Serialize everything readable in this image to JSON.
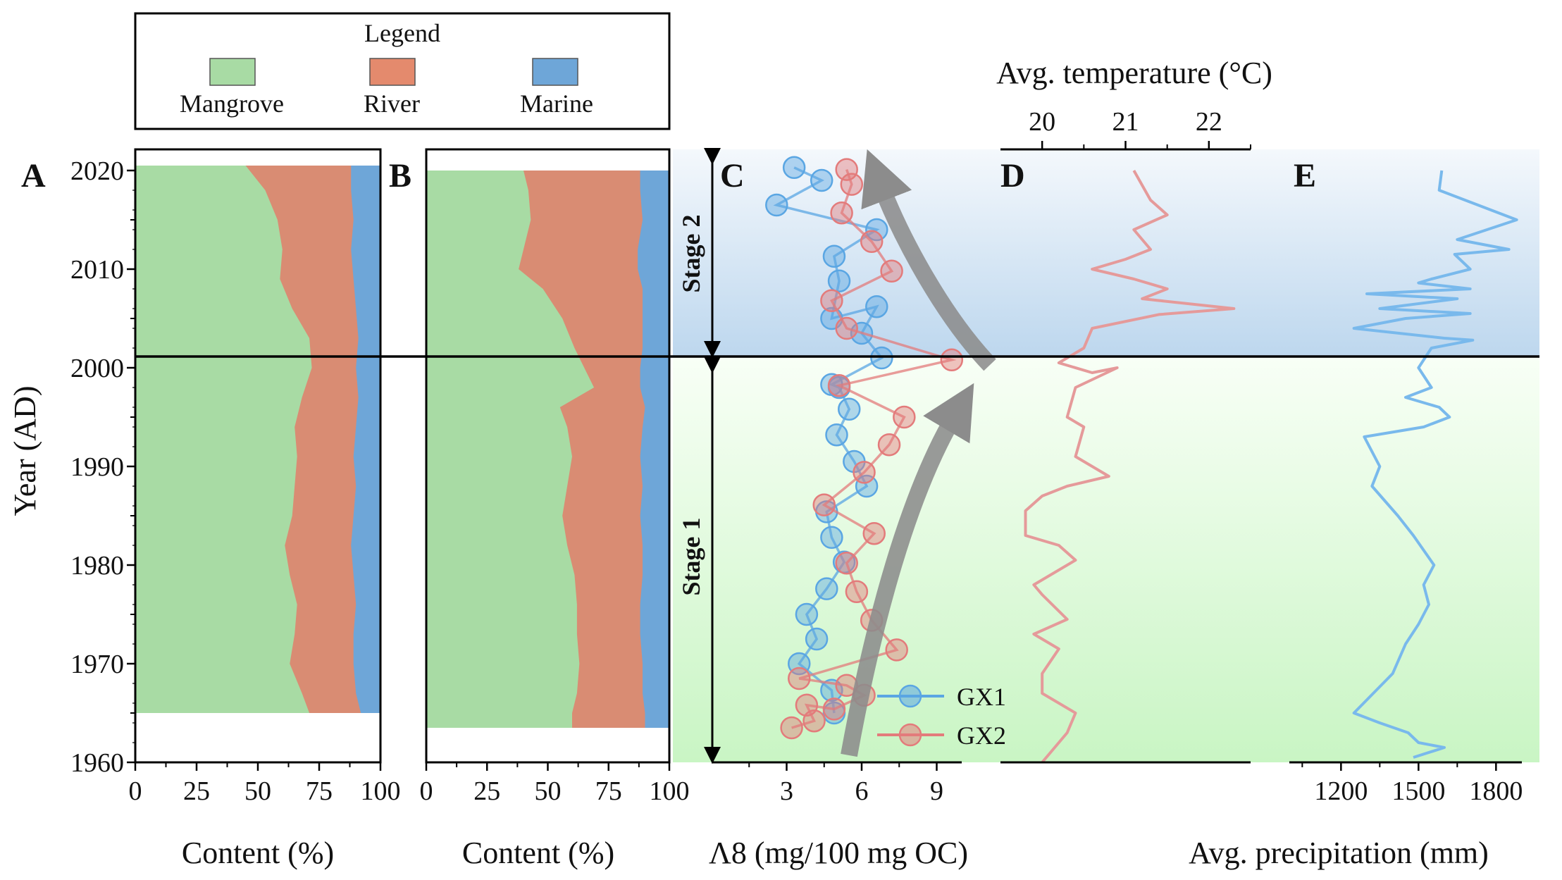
{
  "legend": {
    "title": "Legend",
    "items": [
      {
        "label": "Mangrove",
        "color": "#a8dba4"
      },
      {
        "label": "River",
        "color": "#e48a6d"
      },
      {
        "label": "Marine",
        "color": "#6ea6d8"
      }
    ]
  },
  "colors": {
    "mangrove": "#a8dba4",
    "river": "#d98c73",
    "marine": "#6ea6d8",
    "gx1": "#5aa6e3",
    "gx2": "#e37b7b",
    "temp_line": "#e59a9a",
    "precip_line": "#79b9ec",
    "arrow": "#8c8c8c"
  },
  "stage_labels": {
    "stage2": "Stage 2",
    "stage1": "Stage 1"
  },
  "chart_data": [
    {
      "panel": "A",
      "type": "area",
      "ylabel": "Year (AD)",
      "xlabel": "Content (%)",
      "xlim": [
        0,
        100
      ],
      "ylim": [
        1960,
        2022
      ],
      "y_ticks": [
        1960,
        1970,
        1980,
        1990,
        2000,
        2010,
        2020
      ],
      "x_ticks": [
        0,
        25,
        50,
        75,
        100
      ],
      "series_order": [
        "Mangrove",
        "River",
        "Marine"
      ],
      "years": [
        2020.5,
        2018,
        2015,
        2012,
        2009,
        2006,
        2003,
        2000,
        1997,
        1994,
        1991,
        1988,
        1985,
        1982,
        1979,
        1976,
        1973,
        1970,
        1967,
        1965
      ],
      "mangrove": [
        45,
        53,
        58,
        60,
        59,
        64,
        71,
        72,
        68,
        65,
        66,
        65,
        64,
        61,
        63,
        66,
        65,
        63,
        68,
        71
      ],
      "mangrove_river": [
        88,
        88,
        89,
        88,
        89,
        90,
        91,
        90,
        91,
        90,
        89,
        90,
        89,
        88,
        89,
        90,
        89,
        89,
        90,
        92
      ]
    },
    {
      "panel": "B",
      "type": "area",
      "xlabel": "Content (%)",
      "xlim": [
        0,
        100
      ],
      "x_ticks": [
        0,
        25,
        50,
        75,
        100
      ],
      "years": [
        2020,
        2018,
        2015,
        2012,
        2010,
        2008,
        2005,
        2002,
        2000,
        1998,
        1996,
        1994,
        1991,
        1988,
        1985,
        1982,
        1979,
        1976,
        1973,
        1970,
        1967,
        1965,
        1963.5
      ],
      "mangrove": [
        40,
        42,
        43,
        40,
        38,
        48,
        56,
        61,
        65,
        69,
        55,
        58,
        60,
        58,
        56,
        58,
        61,
        62,
        62,
        63,
        62,
        60,
        60
      ],
      "mangrove_river": [
        88,
        88,
        89,
        87,
        87,
        89,
        89,
        89,
        88,
        88,
        90,
        89,
        88,
        89,
        88,
        89,
        89,
        88,
        88,
        89,
        89,
        90,
        90
      ]
    },
    {
      "panel": "C",
      "type": "line",
      "xlabel": "Λ8 (mg/100 mg OC)",
      "x_ticks": [
        3,
        6,
        9
      ],
      "xlim": [
        0,
        10
      ],
      "series": [
        {
          "name": "GX1",
          "x": [
            3.3,
            4.4,
            2.6,
            6.6,
            4.9,
            5.1,
            4.8,
            6.6,
            6.0,
            6.8,
            4.8,
            5.1,
            5.5,
            5.0,
            5.7,
            6.2,
            4.6,
            4.8,
            5.3,
            4.6,
            3.8,
            4.2,
            3.5,
            4.8,
            4.9
          ],
          "y": [
            2020.3,
            2019,
            2016.5,
            2014,
            2011.3,
            2008.8,
            2005,
            2006.2,
            2003.5,
            2001,
            1998.3,
            1998,
            1995.8,
            1993.2,
            1990.5,
            1988,
            1985.4,
            1982.8,
            1980.3,
            1977.6,
            1975,
            1972.5,
            1970,
            1967.3,
            1965
          ]
        },
        {
          "name": "GX2",
          "x": [
            5.4,
            5.6,
            5.2,
            6.4,
            7.2,
            4.8,
            5.4,
            9.6,
            5.1,
            7.7,
            7.1,
            6.1,
            4.5,
            6.5,
            5.4,
            5.8,
            6.4,
            7.4,
            3.5,
            5.4,
            6.1,
            4.9,
            3.8,
            4.1,
            3.2
          ],
          "y": [
            2020.1,
            2018.6,
            2015.7,
            2012.8,
            2009.8,
            2006.8,
            2004,
            2000.8,
            1998.2,
            1995,
            1992.2,
            1989.4,
            1986.1,
            1983.2,
            1980.2,
            1977.3,
            1974.4,
            1971.4,
            1968.5,
            1967.8,
            1966.8,
            1965.4,
            1965.8,
            1964.2,
            1963.5
          ]
        }
      ]
    },
    {
      "panel": "D",
      "type": "line",
      "title": "Avg. temperature (°C)",
      "x_ticks": [
        20,
        21,
        22
      ],
      "xlim": [
        19.5,
        22.5
      ],
      "series": [
        {
          "name": "Avg. temperature",
          "x": [
            21.1,
            21.3,
            21.5,
            21.1,
            21.3,
            21.0,
            20.6,
            21.1,
            21.5,
            21.2,
            22.3,
            21.4,
            20.6,
            20.5,
            20.2,
            20.6,
            20.9,
            20.4,
            20.3,
            20.5,
            20.4,
            20.8,
            20.3,
            20.0,
            19.8,
            19.8,
            20.2,
            20.4,
            19.9,
            20.0,
            20.3,
            19.9,
            20.2,
            20.0,
            20.0,
            20.4,
            20.3,
            20.0
          ],
          "y": [
            2020,
            2017,
            2015.5,
            2014,
            2012,
            2011,
            2010,
            2009,
            2008,
            2007,
            2006,
            2005.4,
            2004,
            2002,
            2000.5,
            1999.5,
            2000,
            1998,
            1995,
            1994,
            1991,
            1989,
            1988,
            1987,
            1985.5,
            1983,
            1982,
            1980.5,
            1978,
            1977,
            1974.5,
            1973,
            1971.5,
            1969,
            1967,
            1965,
            1963,
            1960
          ]
        }
      ]
    },
    {
      "panel": "E",
      "type": "line",
      "xlabel": "Avg. precipitation (mm)",
      "x_ticks": [
        1200,
        1500,
        1800
      ],
      "xlim": [
        1000,
        1900
      ],
      "series": [
        {
          "name": "Avg. precipitation",
          "x": [
            1590,
            1580,
            1880,
            1650,
            1850,
            1640,
            1700,
            1550,
            1500,
            1700,
            1300,
            1650,
            1350,
            1700,
            1450,
            1250,
            1600,
            1710,
            1550,
            1500,
            1550,
            1450,
            1580,
            1620,
            1520,
            1290,
            1350,
            1320,
            1420,
            1480,
            1560,
            1520,
            1540,
            1500,
            1450,
            1400,
            1250,
            1350,
            1460,
            1500,
            1600,
            1480
          ],
          "y": [
            2020,
            2018,
            2015,
            2013,
            2012,
            2011.5,
            2010,
            2009,
            2008.6,
            2008,
            2007.5,
            2007,
            2006,
            2005.5,
            2005,
            2004,
            2003,
            2002.8,
            2002,
            2000,
            1998,
            1997,
            1996,
            1995,
            1994,
            1993,
            1990,
            1988,
            1985,
            1983,
            1980,
            1978,
            1976,
            1974,
            1972,
            1969,
            1965,
            1964,
            1963,
            1962,
            1961.5,
            1960.5
          ]
        }
      ]
    }
  ],
  "panel_labels": [
    "A",
    "B",
    "C",
    "D",
    "E"
  ]
}
